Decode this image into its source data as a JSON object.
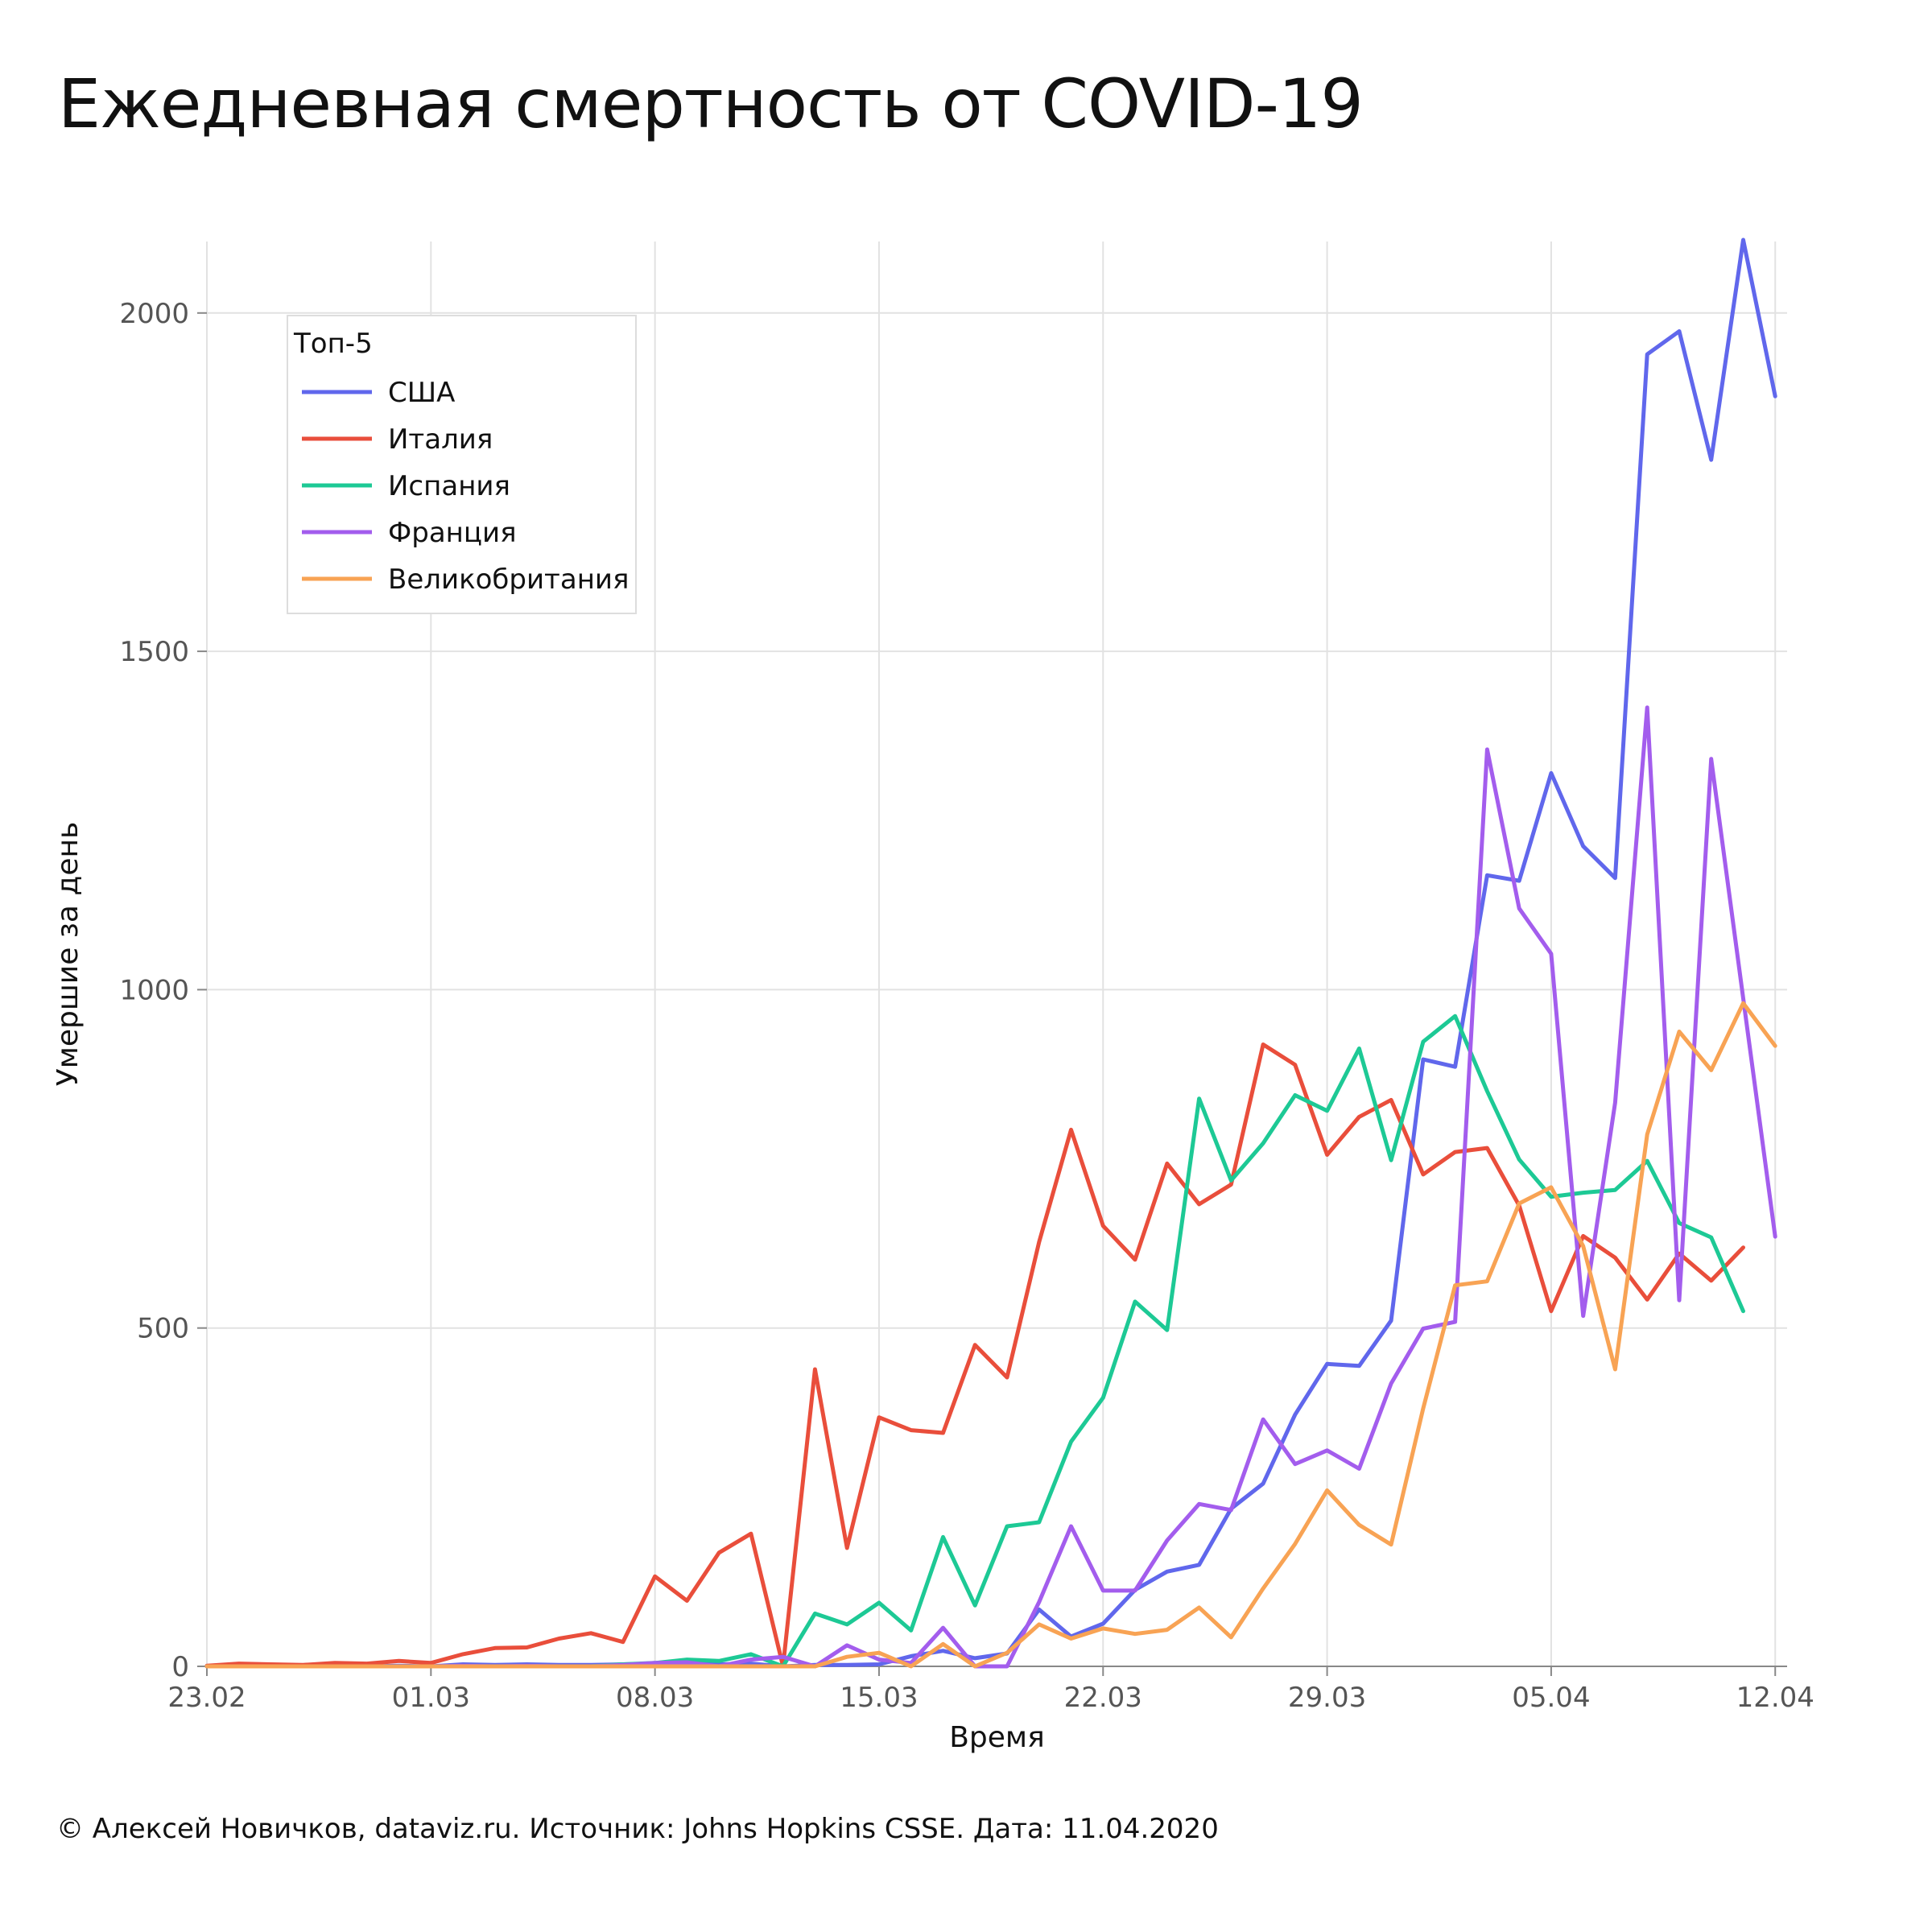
{
  "title": "Ежедневная смертность от COVID-19",
  "credit": "© Алексей Новичков, dataviz.ru. Источник: Johns Hopkins CSSE. Дата: 11.04.2020",
  "chart_data": {
    "type": "line",
    "xlabel": "Время",
    "ylabel": "Умершие за день",
    "x_start": "23.02",
    "x_ticks": [
      {
        "day": 0,
        "label": "23.02"
      },
      {
        "day": 7,
        "label": "01.03"
      },
      {
        "day": 14,
        "label": "08.03"
      },
      {
        "day": 21,
        "label": "15.03"
      },
      {
        "day": 28,
        "label": "22.03"
      },
      {
        "day": 35,
        "label": "29.03"
      },
      {
        "day": 42,
        "label": "05.04"
      },
      {
        "day": 49,
        "label": "12.04"
      }
    ],
    "y_ticks": [
      0,
      500,
      1000,
      1500,
      2000
    ],
    "xlim": [
      0,
      49
    ],
    "ylim": [
      0,
      2100
    ],
    "grid": true,
    "legend": {
      "title": "Топ-5",
      "position": "top-left"
    },
    "series": [
      {
        "name": "США",
        "color": "#6067ec",
        "values": [
          0,
          0,
          0,
          0,
          0,
          0,
          1,
          0,
          3,
          2,
          3,
          2,
          2,
          3,
          4,
          4,
          3,
          4,
          0,
          2,
          2,
          3,
          15,
          23,
          12,
          19,
          84,
          44,
          63,
          113,
          140,
          150,
          233,
          270,
          372,
          447,
          444,
          511,
          897,
          886,
          1169,
          1161,
          1320,
          1212,
          1165,
          1939,
          1973,
          1783,
          2108,
          1877
        ]
      },
      {
        "name": "Италия",
        "color": "#e94e3b",
        "values": [
          1,
          4,
          3,
          2,
          5,
          4,
          8,
          5,
          18,
          27,
          28,
          41,
          49,
          36,
          133,
          97,
          168,
          196,
          0,
          439,
          175,
          368,
          349,
          345,
          475,
          427,
          627,
          793,
          651,
          601,
          743,
          683,
          712,
          919,
          889,
          756,
          812,
          837,
          727,
          760,
          766,
          681,
          525,
          636,
          604,
          542,
          610,
          570,
          619
        ]
      },
      {
        "name": "Испания",
        "color": "#1dc995",
        "values": [
          0,
          0,
          0,
          0,
          0,
          0,
          0,
          0,
          0,
          0,
          0,
          0,
          0,
          3,
          5,
          10,
          8,
          18,
          0,
          78,
          62,
          94,
          53,
          191,
          90,
          207,
          213,
          332,
          397,
          539,
          497,
          839,
          718,
          773,
          844,
          821,
          913,
          748,
          923,
          961,
          850,
          749,
          694,
          700,
          704,
          747,
          655,
          634,
          525
        ]
      },
      {
        "name": "Франция",
        "color": "#a35ded",
        "values": [
          0,
          0,
          0,
          0,
          0,
          0,
          0,
          0,
          1,
          0,
          1,
          0,
          0,
          2,
          5,
          6,
          0,
          10,
          14,
          0,
          31,
          10,
          5,
          57,
          0,
          0,
          95,
          207,
          112,
          112,
          186,
          240,
          231,
          365,
          299,
          319,
          292,
          418,
          499,
          509,
          1355,
          1120,
          1053,
          518,
          833,
          1417,
          541,
          1341,
          987,
          635
        ]
      },
      {
        "name": "Великобритания",
        "color": "#f8a354",
        "values": [
          0,
          0,
          0,
          0,
          0,
          0,
          0,
          0,
          0,
          0,
          0,
          0,
          0,
          0,
          0,
          0,
          0,
          0,
          0,
          0,
          14,
          20,
          0,
          33,
          0,
          20,
          62,
          41,
          56,
          48,
          54,
          87,
          43,
          115,
          181,
          260,
          209,
          180,
          381,
          563,
          569,
          684,
          708,
          621,
          439,
          786,
          938,
          881,
          980,
          917
        ]
      }
    ]
  }
}
